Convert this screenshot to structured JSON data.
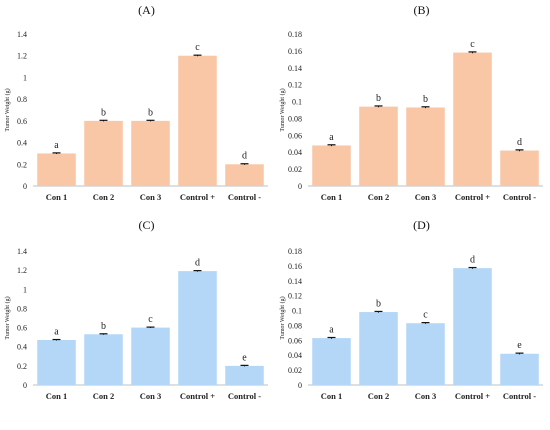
{
  "colors": {
    "orange": "#f9c7a5",
    "blue": "#b4d7f7",
    "axis": "#bfbfbf",
    "errbar": "#111111"
  },
  "chart_data": [
    {
      "type": "bar",
      "title": "(A)",
      "ylabel": "Tumor Weight (g)",
      "categories": [
        "Con 1",
        "Con 2",
        "Con 3",
        "Control +",
        "Control -"
      ],
      "values": [
        0.3,
        0.6,
        0.6,
        1.2,
        0.2
      ],
      "errors": [
        0.005,
        0.005,
        0.005,
        0.005,
        0.005
      ],
      "letters": [
        "a",
        "b",
        "b",
        "c",
        "d"
      ],
      "ylim": [
        0,
        1.4
      ],
      "yticks": [
        "0",
        "0.2",
        "0.4",
        "0.6",
        "0.8",
        "1",
        "1.2",
        "1.4"
      ],
      "color": "orange",
      "grid": false
    },
    {
      "type": "bar",
      "title": "(B)",
      "ylabel": "Tumor Weight (g)",
      "categories": [
        "Con 1",
        "Con 2",
        "Con 3",
        "Control +",
        "Control -"
      ],
      "values": [
        0.048,
        0.094,
        0.093,
        0.158,
        0.042
      ],
      "errors": [
        0.0008,
        0.0008,
        0.0008,
        0.0008,
        0.0008
      ],
      "letters": [
        "a",
        "b",
        "b",
        "c",
        "d"
      ],
      "ylim": [
        0,
        0.18
      ],
      "yticks": [
        "0",
        "0.02",
        "0.04",
        "0.06",
        "0.08",
        "0.1",
        "0.12",
        "0.14",
        "0.16",
        "0.18"
      ],
      "color": "orange",
      "grid": false
    },
    {
      "type": "bar",
      "title": "(C)",
      "ylabel": "Tumor Weight (g)",
      "categories": [
        "Con 1",
        "Con 2",
        "Con 3",
        "Control +",
        "Control -"
      ],
      "values": [
        0.47,
        0.53,
        0.6,
        1.19,
        0.2
      ],
      "errors": [
        0.005,
        0.005,
        0.005,
        0.005,
        0.005
      ],
      "letters": [
        "a",
        "b",
        "c",
        "d",
        "e"
      ],
      "ylim": [
        0,
        1.4
      ],
      "yticks": [
        "0",
        "0.2",
        "0.4",
        "0.6",
        "0.8",
        "1",
        "1.2",
        "1.4"
      ],
      "color": "blue",
      "grid": false
    },
    {
      "type": "bar",
      "title": "(D)",
      "ylabel": "Tumor Weight (g)",
      "categories": [
        "Con 1",
        "Con 2",
        "Con 3",
        "Control +",
        "Control -"
      ],
      "values": [
        0.063,
        0.098,
        0.083,
        0.157,
        0.042
      ],
      "errors": [
        0.0008,
        0.0008,
        0.0008,
        0.0008,
        0.0008
      ],
      "letters": [
        "a",
        "b",
        "c",
        "d",
        "e"
      ],
      "ylim": [
        0,
        0.18
      ],
      "yticks": [
        "0",
        "0.02",
        "0.04",
        "0.06",
        "0.08",
        "0.1",
        "0.12",
        "0.14",
        "0.16",
        "0.18"
      ],
      "color": "blue",
      "grid": false
    }
  ]
}
